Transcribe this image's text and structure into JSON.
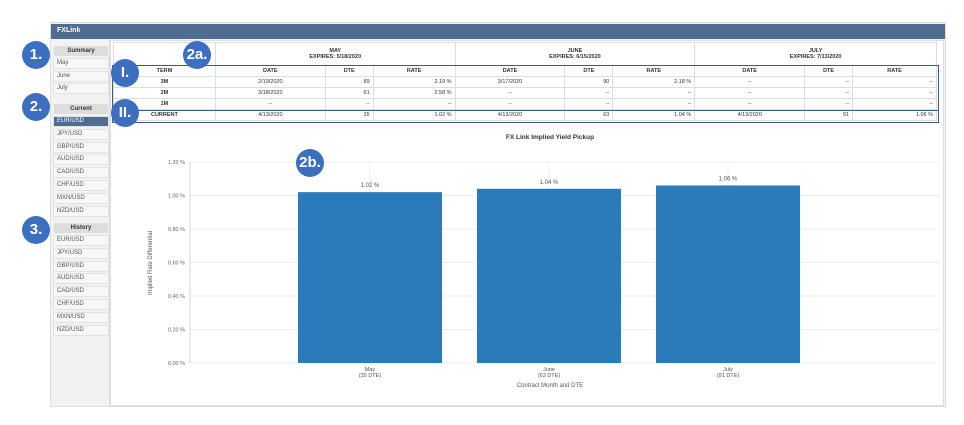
{
  "window": {
    "title": "FXLink"
  },
  "sidebar": {
    "summary": {
      "label": "Summary",
      "items": [
        "May",
        "June",
        "July"
      ]
    },
    "current": {
      "label": "Current",
      "items": [
        "EUR/USD",
        "JPY/USD",
        "GBP/USD",
        "AUD/USD",
        "CAD/USD",
        "CHF/USD",
        "MXN/USD",
        "NZD/USD"
      ],
      "selected": "EUR/USD"
    },
    "history": {
      "label": "History",
      "items": [
        "EUR/USD",
        "JPY/USD",
        "GBP/USD",
        "AUD/USD",
        "CAD/USD",
        "CHF/USD",
        "MXN/USD",
        "NZD/USD"
      ]
    }
  },
  "table": {
    "months": [
      {
        "name": "MAY",
        "expires": "EXPIRES: 5/18/2020"
      },
      {
        "name": "JUNE",
        "expires": "EXPIRES: 6/15/2020"
      },
      {
        "name": "JULY",
        "expires": "EXPIRES: 7/13/2020"
      }
    ],
    "headers": [
      "TERM",
      "DATE",
      "DTE",
      "RATE",
      "DATE",
      "DTE",
      "RATE",
      "DATE",
      "DTE",
      "RATE"
    ],
    "rows": [
      [
        "3M",
        "2/19/2020",
        "89",
        "2.19 %",
        "3/17/2020",
        "90",
        "2.18 %",
        "--",
        "--",
        "--"
      ],
      [
        "2M",
        "3/18/2020",
        "61",
        "2.58 %",
        "--",
        "--",
        "--",
        "--",
        "--",
        "--"
      ],
      [
        "1M",
        "--",
        "--",
        "--",
        "--",
        "--",
        "--",
        "--",
        "--",
        "--"
      ],
      [
        "CURRENT",
        "4/13/2020",
        "35",
        "1.02 %",
        "4/13/2020",
        "63",
        "1.04 %",
        "4/13/2020",
        "91",
        "1.06 %"
      ]
    ]
  },
  "badges": [
    "1.",
    "2.",
    "3.",
    "2a.",
    "I.",
    "II.",
    "2b."
  ],
  "chart_data": {
    "type": "bar",
    "title": "FX Link Implied Yield Pickup",
    "xlabel": "Contract Month and DTE",
    "ylabel": "Implied Rate Differential",
    "categories": [
      [
        "May",
        "(35 DTE)"
      ],
      [
        "June",
        "(63 DTE)"
      ],
      [
        "July",
        "(91 DTE)"
      ]
    ],
    "values": [
      1.02,
      1.04,
      1.06
    ],
    "value_labels": [
      "1.02 %",
      "1.04 %",
      "1.06 %"
    ],
    "ylim": [
      0,
      1.2
    ],
    "yticks": [
      "0.00 %",
      "0.20 %",
      "0.40 %",
      "0.60 %",
      "0.80 %",
      "1.00 %",
      "1.20 %"
    ],
    "grid": true,
    "color": "#2b7bba"
  }
}
